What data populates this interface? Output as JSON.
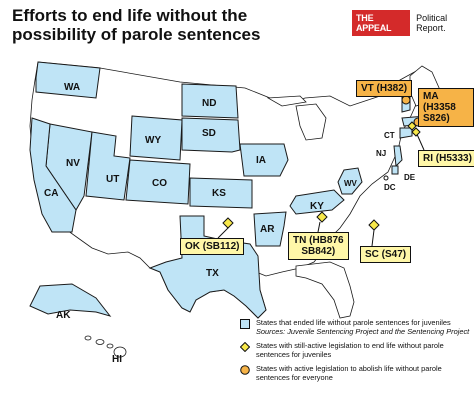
{
  "title": {
    "line1": "Efforts to end life without the",
    "line2": "possibility of parole sentences"
  },
  "brand": {
    "logo": "THE APPEAL",
    "sub": "Political Report."
  },
  "states": {
    "WA": "WA",
    "ND": "ND",
    "NV": "NV",
    "WY": "WY",
    "SD": "SD",
    "UT": "UT",
    "CA": "CA",
    "CO": "CO",
    "KS": "KS",
    "IA": "IA",
    "WV": "WV",
    "KY": "KY",
    "AR": "AR",
    "TX": "TX",
    "NJ": "NJ",
    "DE": "DE",
    "DC": "DC",
    "CT": "CT",
    "AK": "AK",
    "HI": "HI"
  },
  "callouts": {
    "vt": "VT (H382)",
    "ma": "MA (H3358\nS826)",
    "ri": "RI (H5333)",
    "ok": "OK (SB112)",
    "tn": "TN (HB876\nSB842)",
    "sc": "SC (S47)"
  },
  "legend": {
    "ended": "States that ended life without parole sentences for juveniles",
    "ended_sources": "Sources: Juvenile Sentencing Project and the Sentencing Project",
    "juvenile": "States with still-active legislation to end life without parole sentences for juveniles",
    "everyone": "States with active legislation to abolish life without parole sentences for everyone"
  },
  "colors": {
    "ended_fill": "#bfe4f6",
    "juvenile_marker": "#f7e84a",
    "everyone_marker": "#f6b347",
    "brand_red": "#d42a2a"
  }
}
